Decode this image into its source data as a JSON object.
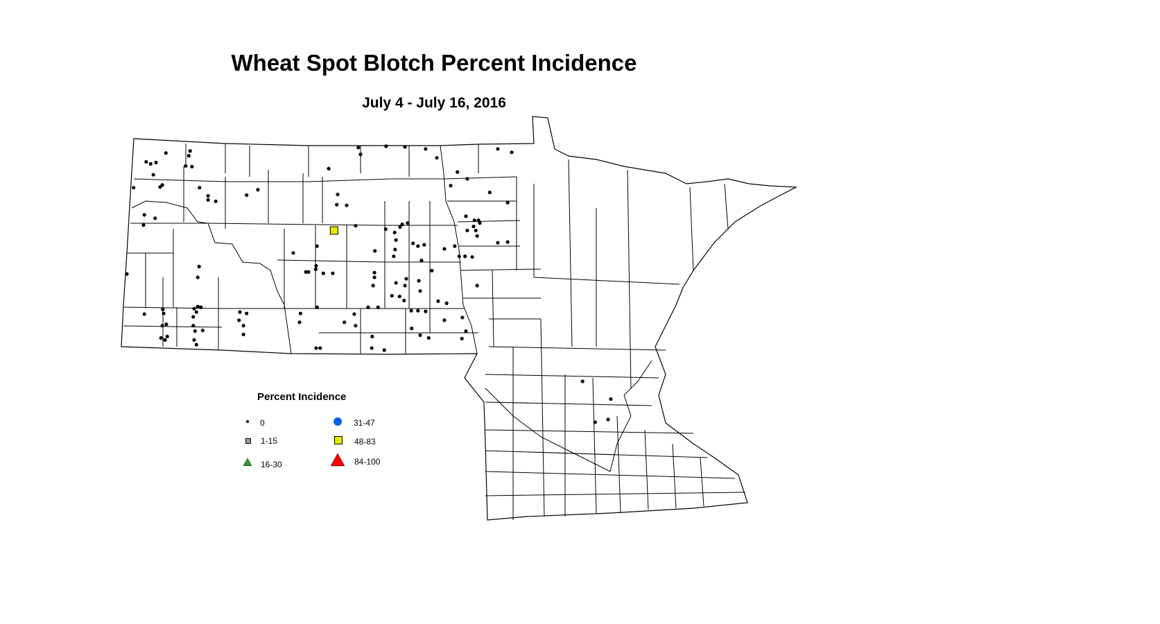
{
  "title": "Wheat Spot Blotch Percent Incidence",
  "subtitle": "July 4 - July 16, 2016",
  "legend": {
    "title": "Percent Incidence",
    "items": [
      {
        "label": "0",
        "symbol": "small-dot",
        "color": "#000000"
      },
      {
        "label": "1-15",
        "symbol": "square",
        "color": "#999999"
      },
      {
        "label": "16-30",
        "symbol": "triangle",
        "color": "#2ca02c"
      },
      {
        "label": "31-47",
        "symbol": "circle",
        "color": "#0a5ff0"
      },
      {
        "label": "48-83",
        "symbol": "square",
        "color": "#e6e600"
      },
      {
        "label": "84-100",
        "symbol": "triangle",
        "color": "#ff0000"
      }
    ]
  },
  "map_data": {
    "region": "North Dakota and Minnesota counties",
    "sites_fields": [
      "lon",
      "lat",
      "category"
    ],
    "sites": [
      [
        -103.18,
        48.84,
        "0"
      ],
      [
        -103.62,
        48.71,
        "0"
      ],
      [
        -103.52,
        48.68,
        "0"
      ],
      [
        -103.4,
        48.7,
        "0"
      ],
      [
        -102.64,
        48.87,
        "0"
      ],
      [
        -102.67,
        48.8,
        "0"
      ],
      [
        -102.74,
        48.65,
        "0"
      ],
      [
        -102.6,
        48.64,
        "0"
      ],
      [
        -103.46,
        48.52,
        "0"
      ],
      [
        -103.9,
        48.33,
        "0"
      ],
      [
        -103.26,
        48.37,
        "0"
      ],
      [
        -103.31,
        48.34,
        "0"
      ],
      [
        -102.43,
        48.33,
        "0"
      ],
      [
        -102.24,
        48.21,
        "0"
      ],
      [
        -102.24,
        48.15,
        "0"
      ],
      [
        -102.07,
        48.13,
        "0"
      ],
      [
        -101.38,
        48.22,
        "0"
      ],
      [
        -101.13,
        48.3,
        "0"
      ],
      [
        -103.66,
        47.93,
        "0"
      ],
      [
        -103.42,
        47.88,
        "0"
      ],
      [
        -103.68,
        47.78,
        "0"
      ],
      [
        -104.05,
        47.06,
        "0"
      ],
      [
        -102.44,
        47.17,
        "0"
      ],
      [
        -102.47,
        47.01,
        "0"
      ],
      [
        -103.25,
        46.54,
        "0"
      ],
      [
        -103.23,
        46.48,
        "0"
      ],
      [
        -103.66,
        46.47,
        "0"
      ],
      [
        -103.26,
        46.3,
        "0"
      ],
      [
        -103.17,
        46.32,
        "0"
      ],
      [
        -103.15,
        46.14,
        "0"
      ],
      [
        -103.29,
        46.12,
        "0"
      ],
      [
        -103.2,
        46.09,
        "0"
      ],
      [
        -102.55,
        46.55,
        "0"
      ],
      [
        -102.47,
        46.58,
        "0"
      ],
      [
        -102.4,
        46.57,
        "0"
      ],
      [
        -102.5,
        46.5,
        "0"
      ],
      [
        -102.57,
        46.43,
        "0"
      ],
      [
        -102.57,
        46.3,
        "0"
      ],
      [
        -102.53,
        46.22,
        "0"
      ],
      [
        -102.36,
        46.23,
        "0"
      ],
      [
        -102.55,
        46.09,
        "0"
      ],
      [
        -102.5,
        46.02,
        "0"
      ],
      [
        -101.53,
        46.5,
        "0"
      ],
      [
        -101.38,
        46.48,
        "0"
      ],
      [
        -101.55,
        46.38,
        "0"
      ],
      [
        -101.45,
        46.3,
        "0"
      ],
      [
        -101.45,
        46.17,
        "0"
      ],
      [
        -100.18,
        46.48,
        "0"
      ],
      [
        -100.2,
        46.35,
        "0"
      ],
      [
        -99.81,
        46.57,
        "0"
      ],
      [
        -99.83,
        45.97,
        "0"
      ],
      [
        -99.74,
        45.97,
        "0"
      ],
      [
        -99.55,
        48.61,
        "0"
      ],
      [
        -98.89,
        48.92,
        "0"
      ],
      [
        -98.84,
        48.82,
        "0"
      ],
      [
        -98.27,
        48.94,
        "0"
      ],
      [
        -97.85,
        48.93,
        "0"
      ],
      [
        -97.39,
        48.9,
        "0"
      ],
      [
        -97.14,
        48.77,
        "0"
      ],
      [
        -96.68,
        48.56,
        "0"
      ],
      [
        -99.35,
        48.23,
        "0"
      ],
      [
        -99.37,
        48.08,
        "0"
      ],
      [
        -99.15,
        48.07,
        "0"
      ],
      [
        -99.43,
        47.7,
        "48-83"
      ],
      [
        -98.95,
        47.77,
        "0"
      ],
      [
        -99.81,
        47.47,
        "0"
      ],
      [
        -100.34,
        47.37,
        "0"
      ],
      [
        -100.06,
        47.09,
        "0"
      ],
      [
        -100.0,
        47.09,
        "0"
      ],
      [
        -99.84,
        47.13,
        "0"
      ],
      [
        -99.67,
        47.07,
        "0"
      ],
      [
        -99.83,
        47.18,
        "0"
      ],
      [
        -99.46,
        47.07,
        "0"
      ],
      [
        -98.52,
        47.4,
        "0"
      ],
      [
        -98.53,
        47.08,
        "0"
      ],
      [
        -98.53,
        47.01,
        "0"
      ],
      [
        -98.56,
        46.89,
        "0"
      ],
      [
        -98.67,
        46.57,
        "0"
      ],
      [
        -98.45,
        46.57,
        "0"
      ],
      [
        -99.2,
        46.35,
        "0"
      ],
      [
        -98.98,
        46.47,
        "0"
      ],
      [
        -98.95,
        46.3,
        "0"
      ],
      [
        -98.58,
        46.14,
        "0"
      ],
      [
        -98.59,
        45.97,
        "0"
      ],
      [
        -98.31,
        45.94,
        "0"
      ],
      [
        -98.28,
        47.72,
        "0"
      ],
      [
        -98.08,
        47.67,
        "0"
      ],
      [
        -97.96,
        47.75,
        "0"
      ],
      [
        -97.91,
        47.79,
        "0"
      ],
      [
        -97.79,
        47.81,
        "0"
      ],
      [
        -98.05,
        47.56,
        "0"
      ],
      [
        -98.07,
        47.42,
        "0"
      ],
      [
        -98.1,
        47.32,
        "0"
      ],
      [
        -97.67,
        47.51,
        "0"
      ],
      [
        -97.56,
        47.47,
        "0"
      ],
      [
        -97.42,
        47.49,
        "0"
      ],
      [
        -97.48,
        47.26,
        "0"
      ],
      [
        -98.05,
        46.93,
        "0"
      ],
      [
        -97.82,
        46.99,
        "0"
      ],
      [
        -97.85,
        46.89,
        "0"
      ],
      [
        -97.54,
        46.96,
        "0"
      ],
      [
        -97.25,
        47.11,
        "0"
      ],
      [
        -97.97,
        46.73,
        "0"
      ],
      [
        -98.14,
        46.74,
        "0"
      ],
      [
        -97.87,
        46.67,
        "0"
      ],
      [
        -97.51,
        46.81,
        "0"
      ],
      [
        -97.71,
        46.52,
        "0"
      ],
      [
        -97.56,
        46.52,
        "0"
      ],
      [
        -97.39,
        46.51,
        "0"
      ],
      [
        -97.11,
        46.66,
        "0"
      ],
      [
        -96.92,
        46.63,
        "0"
      ],
      [
        -97.7,
        46.26,
        "0"
      ],
      [
        -97.51,
        46.16,
        "0"
      ],
      [
        -97.32,
        46.12,
        "0"
      ],
      [
        -96.97,
        46.38,
        "0"
      ],
      [
        -96.57,
        46.42,
        "0"
      ],
      [
        -96.58,
        46.11,
        "0"
      ],
      [
        -96.49,
        46.22,
        "0"
      ],
      [
        -96.83,
        48.36,
        "0"
      ],
      [
        -96.46,
        48.46,
        "0"
      ],
      [
        -95.96,
        48.26,
        "0"
      ],
      [
        -95.47,
        48.85,
        "0"
      ],
      [
        -95.78,
        48.9,
        "0"
      ],
      [
        -95.56,
        48.11,
        "0"
      ],
      [
        -96.49,
        47.91,
        "0"
      ],
      [
        -96.3,
        47.85,
        "0"
      ],
      [
        -96.21,
        47.85,
        "0"
      ],
      [
        -96.18,
        47.81,
        "0"
      ],
      [
        -96.32,
        47.76,
        "0"
      ],
      [
        -96.27,
        47.7,
        "0"
      ],
      [
        -96.46,
        47.7,
        "0"
      ],
      [
        -96.24,
        47.62,
        "0"
      ],
      [
        -95.78,
        47.52,
        "0"
      ],
      [
        -95.56,
        47.53,
        "0"
      ],
      [
        -96.97,
        47.43,
        "0"
      ],
      [
        -96.74,
        47.47,
        "0"
      ],
      [
        -96.64,
        47.32,
        "0"
      ],
      [
        -96.51,
        47.32,
        "0"
      ],
      [
        -96.35,
        47.31,
        "0"
      ],
      [
        -96.24,
        46.89,
        "0"
      ],
      [
        -93.89,
        45.48,
        "0"
      ],
      [
        -93.26,
        45.22,
        "0"
      ],
      [
        -93.61,
        44.88,
        "0"
      ],
      [
        -93.32,
        44.92,
        "0"
      ]
    ]
  }
}
